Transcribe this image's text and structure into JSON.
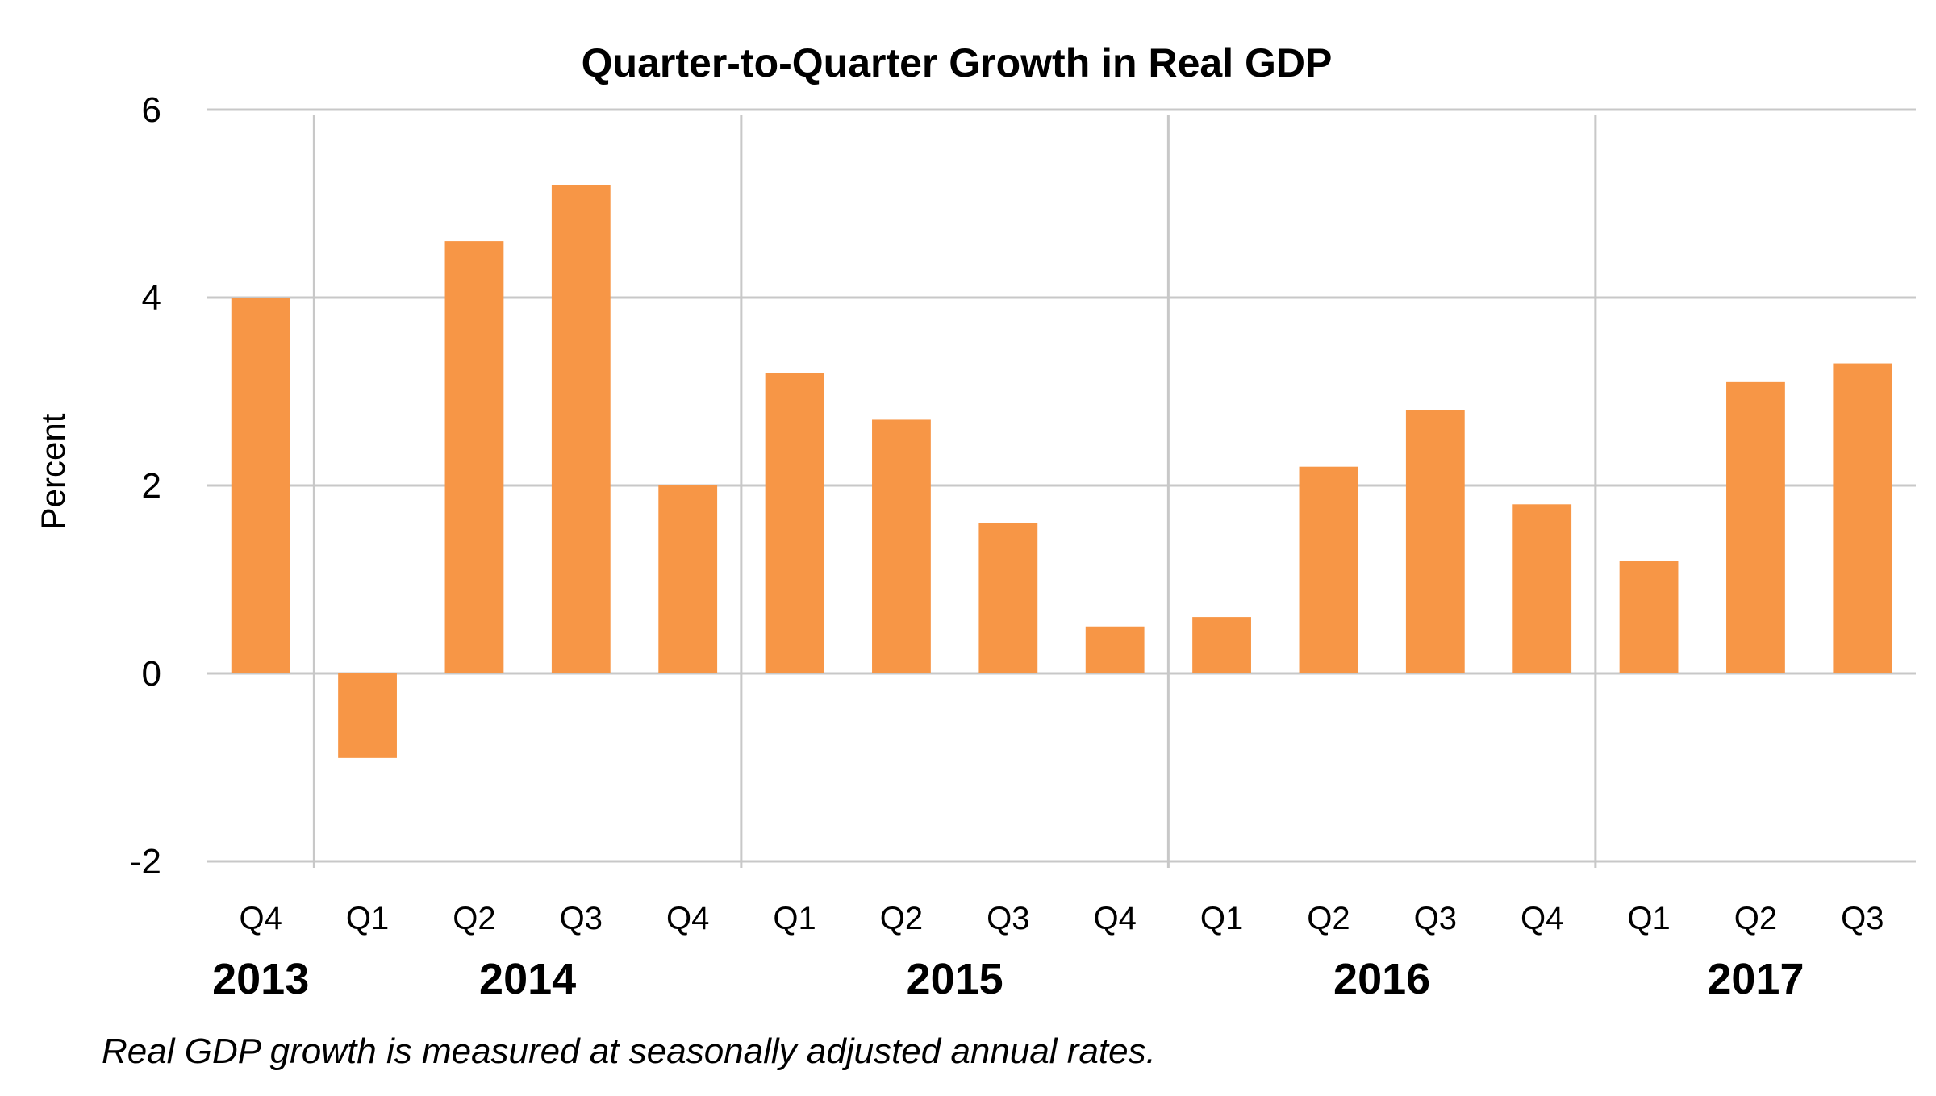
{
  "chart_data": {
    "type": "bar",
    "title": "Quarter-to-Quarter Growth in Real GDP",
    "xlabel": "",
    "ylabel": "Percent",
    "ylim": [
      -2,
      6
    ],
    "yticks": [
      "-2",
      "0",
      "2",
      "4",
      "6"
    ],
    "grid": true,
    "categories": [
      "Q4",
      "Q1",
      "Q2",
      "Q3",
      "Q4",
      "Q1",
      "Q2",
      "Q3",
      "Q4",
      "Q1",
      "Q2",
      "Q3",
      "Q4",
      "Q1",
      "Q2",
      "Q3"
    ],
    "years": [
      {
        "label": "2013",
        "start": 0,
        "end": 0
      },
      {
        "label": "2014",
        "start": 1,
        "end": 4
      },
      {
        "label": "2015",
        "start": 5,
        "end": 8
      },
      {
        "label": "2016",
        "start": 9,
        "end": 12
      },
      {
        "label": "2017",
        "start": 13,
        "end": 15
      }
    ],
    "values": [
      4.0,
      -0.9,
      4.6,
      5.2,
      2.0,
      3.2,
      2.7,
      1.6,
      0.5,
      0.6,
      2.2,
      2.8,
      1.8,
      1.2,
      3.1,
      3.3
    ],
    "bar_color": "#F79646",
    "grid_color": "#C8C8C8",
    "footnote": "Real GDP growth is measured at seasonally adjusted annual rates."
  }
}
